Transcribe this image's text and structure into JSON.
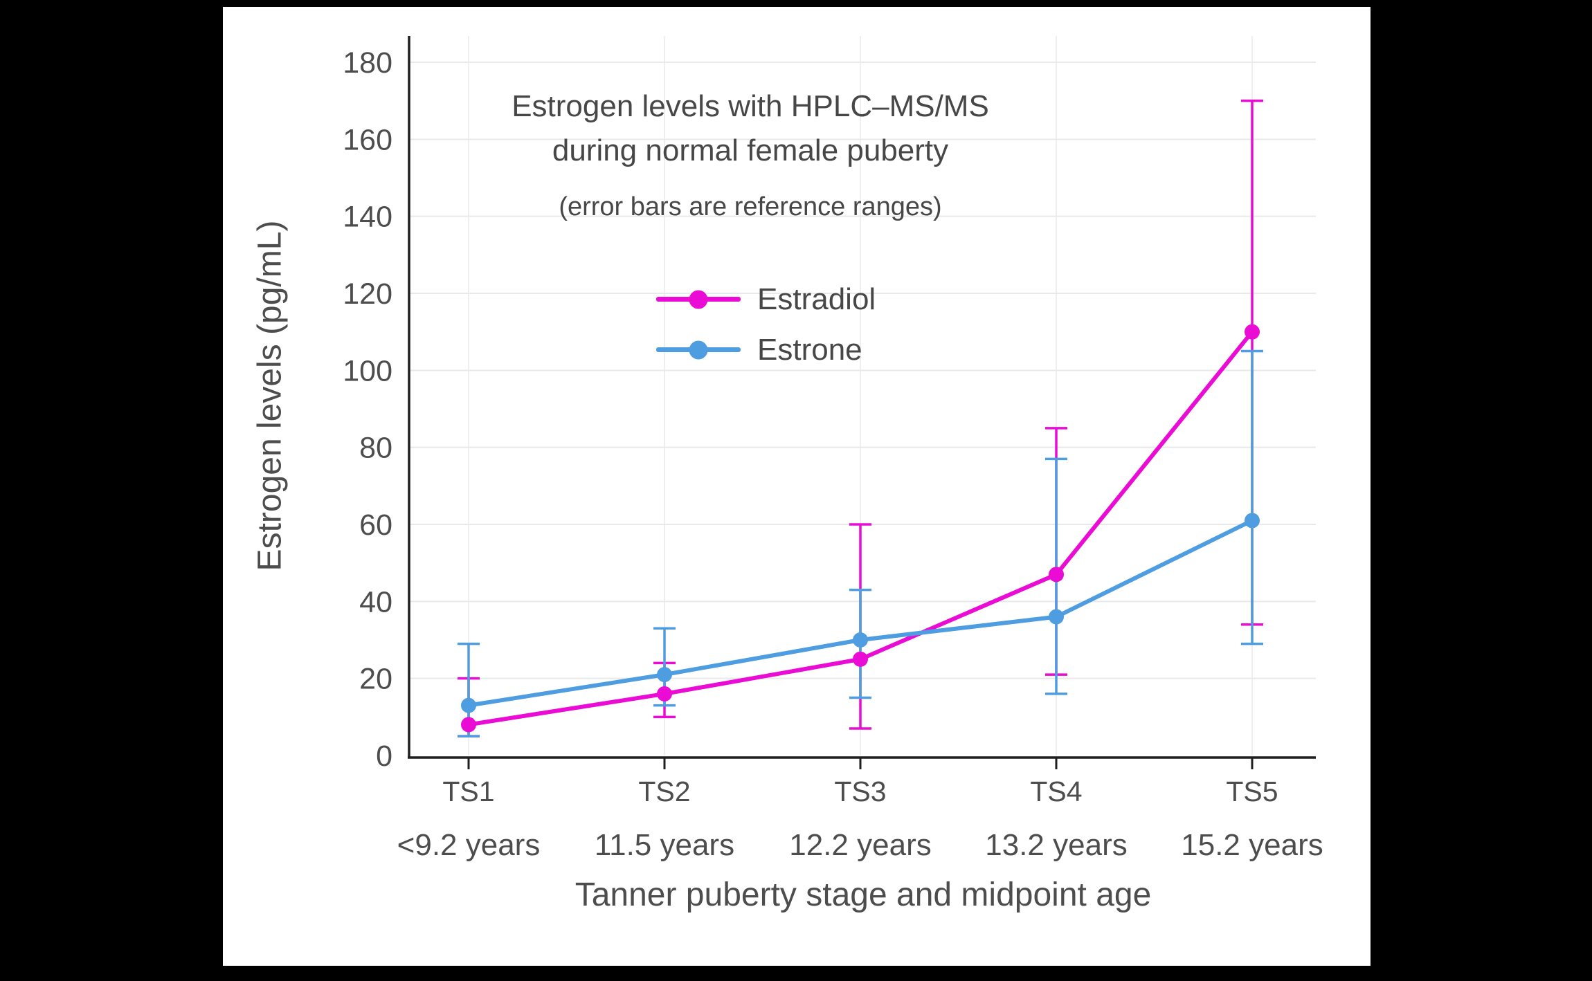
{
  "colors": {
    "background": "#000000",
    "panel": "#ffffff",
    "text": "#4d4d4d",
    "axis": "#1f1f1f",
    "grid_h": "#e9e9e9",
    "grid_v": "#efefef"
  },
  "chart_data": {
    "type": "line",
    "title": "Estrogen levels with HPLC–MS/MS during normal female puberty",
    "title_lines": [
      "Estrogen levels with HPLC–MS/MS",
      "during normal female puberty"
    ],
    "subtitle": "(error bars are reference ranges)",
    "xlabel": "Tanner puberty stage and midpoint age",
    "ylabel": "Estrogen levels (pg/mL)",
    "ylim": [
      0,
      180
    ],
    "yticks": [
      0,
      20,
      40,
      60,
      80,
      100,
      120,
      140,
      160,
      180
    ],
    "grid": true,
    "legend_position": "inside-upper-left",
    "categories": [
      {
        "stage": "TS1",
        "age": "<9.2 years"
      },
      {
        "stage": "TS2",
        "age": "11.5 years"
      },
      {
        "stage": "TS3",
        "age": "12.2 years"
      },
      {
        "stage": "TS4",
        "age": "13.2 years"
      },
      {
        "stage": "TS5",
        "age": "15.2 years"
      }
    ],
    "series": [
      {
        "name": "Estradiol",
        "color": "#EA0CD5",
        "marker": "circle",
        "values": [
          8,
          16,
          25,
          47,
          110
        ],
        "ref_range_low": [
          5,
          10,
          7,
          21,
          34
        ],
        "ref_range_high": [
          20,
          24,
          60,
          85,
          170
        ]
      },
      {
        "name": "Estrone",
        "color": "#4D9DE0",
        "marker": "circle",
        "values": [
          13,
          21,
          30,
          36,
          61
        ],
        "ref_range_low": [
          5,
          13,
          15,
          16,
          29
        ],
        "ref_range_high": [
          29,
          33,
          43,
          77,
          105
        ]
      }
    ]
  }
}
